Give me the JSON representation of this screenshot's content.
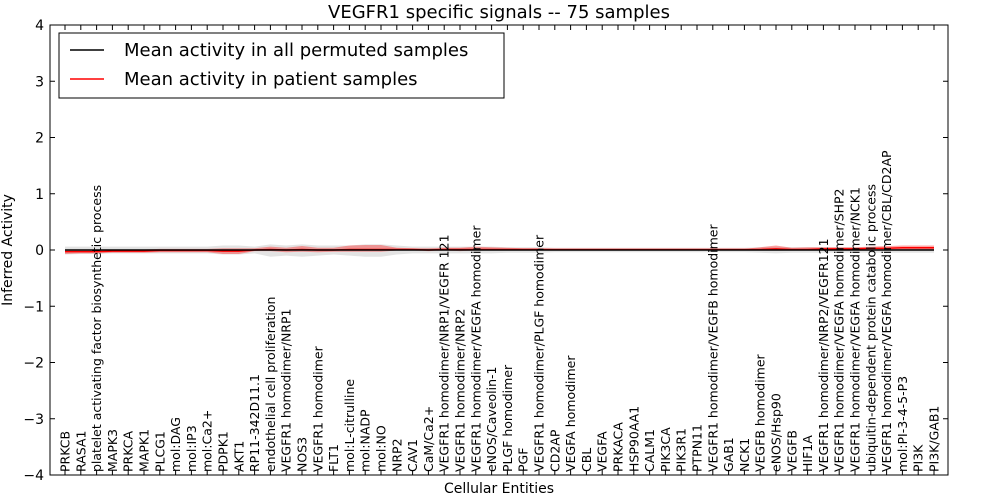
{
  "chart_data": {
    "type": "line",
    "title": "VEGFR1 specific signals -- 75 samples",
    "xlabel": "Cellular Entities",
    "ylabel": "Inferred Activity",
    "ylim": [
      -4,
      4
    ],
    "yticks": [
      "−4",
      "−3",
      "−2",
      "−1",
      "0",
      "1",
      "2",
      "3",
      "4"
    ],
    "grid": false,
    "legend_position": "top-left",
    "categories": [
      "PRKCB",
      "RASA1",
      "platelet activating factor biosynthetic process",
      "MAPK3",
      "PRKCA",
      "MAPK1",
      "PLCG1",
      "mol:DAG",
      "mol:IP3",
      "mol:Ca2+",
      "PDPK1",
      "AKT1",
      "RP11-342D11.1",
      "endothelial cell proliferation",
      "VEGFR1 homodimer/NRP1",
      "NOS3",
      "VEGFR1 homodimer",
      "FLT1",
      "mol:L-citrulline",
      "mol:NADP",
      "mol:NO",
      "NRP2",
      "CAV1",
      "CaM/Ca2+",
      "VEGFR1 homodimer/NRP1/VEGFR 121",
      "VEGFR1 homodimer/NRP2",
      "VEGFR1 homodimer/VEGFA homodimer",
      "eNOS/Caveolin-1",
      "PLGF homodimer",
      "PGF",
      "VEGFR1 homodimer/PLGF homodimer",
      "CD2AP",
      "VEGFA homodimer",
      "CBL",
      "VEGFA",
      "PRKACA",
      "HSP90AA1",
      "CALM1",
      "PIK3CA",
      "PIK3R1",
      "PTPN11",
      "VEGFR1 homodimer/VEGFB homodimer",
      "GAB1",
      "NCK1",
      "VEGFB homodimer",
      "eNOS/Hsp90",
      "VEGFB",
      "HIF1A",
      "VEGFR1 homodimer/NRP2/VEGFR121",
      "VEGFR1 homodimer/VEGFA homodimer/SHP2",
      "VEGFR1 homodimer/VEGFA homodimer/NCK1",
      "ubiquitin-dependent protein catabolic process",
      "VEGFR1 homodimer/VEGFA homodimer/CBL/CD2AP",
      "mol:PI-3-4-5-P3",
      "PI3K",
      "PI3K/GAB1"
    ],
    "series": [
      {
        "name": "Mean activity in all permuted samples",
        "color": "#000000",
        "values": [
          0.0,
          0.0,
          0.0,
          0.0,
          0.0,
          0.0,
          0.0,
          0.0,
          0.0,
          0.0,
          0.0,
          0.0,
          0.0,
          0.0,
          0.0,
          0.0,
          0.0,
          0.0,
          0.0,
          0.0,
          0.0,
          0.0,
          0.0,
          0.0,
          0.0,
          0.0,
          0.0,
          0.0,
          0.0,
          0.0,
          0.0,
          0.0,
          0.0,
          0.0,
          0.0,
          0.0,
          0.0,
          0.0,
          0.0,
          0.0,
          0.0,
          0.0,
          0.0,
          0.0,
          0.0,
          0.0,
          0.0,
          0.0,
          0.0,
          0.0,
          0.0,
          0.0,
          0.0,
          0.0,
          0.0,
          0.0
        ],
        "band_low": [
          -0.08,
          -0.07,
          -0.07,
          -0.06,
          -0.06,
          -0.06,
          -0.06,
          -0.06,
          -0.06,
          -0.06,
          -0.08,
          -0.08,
          -0.06,
          -0.12,
          -0.1,
          -0.12,
          -0.1,
          -0.08,
          -0.1,
          -0.12,
          -0.12,
          -0.08,
          -0.06,
          -0.06,
          -0.06,
          -0.06,
          -0.06,
          -0.06,
          -0.05,
          -0.05,
          -0.05,
          -0.04,
          -0.04,
          -0.04,
          -0.04,
          -0.04,
          -0.04,
          -0.04,
          -0.04,
          -0.04,
          -0.04,
          -0.04,
          -0.04,
          -0.04,
          -0.05,
          -0.06,
          -0.05,
          -0.05,
          -0.05,
          -0.05,
          -0.05,
          -0.05,
          -0.05,
          -0.05,
          -0.05,
          -0.05
        ],
        "band_high": [
          0.06,
          0.06,
          0.06,
          0.06,
          0.06,
          0.06,
          0.06,
          0.06,
          0.06,
          0.06,
          0.08,
          0.08,
          0.06,
          0.1,
          0.08,
          0.1,
          0.08,
          0.08,
          0.08,
          0.1,
          0.1,
          0.08,
          0.06,
          0.06,
          0.06,
          0.06,
          0.06,
          0.06,
          0.05,
          0.05,
          0.05,
          0.04,
          0.04,
          0.04,
          0.04,
          0.04,
          0.04,
          0.04,
          0.04,
          0.04,
          0.04,
          0.04,
          0.04,
          0.04,
          0.05,
          0.06,
          0.05,
          0.05,
          0.05,
          0.05,
          0.05,
          0.05,
          0.05,
          0.05,
          0.05,
          0.05
        ]
      },
      {
        "name": "Mean activity in patient samples",
        "color": "#ff0000",
        "values": [
          -0.03,
          -0.03,
          -0.03,
          -0.02,
          -0.02,
          -0.02,
          -0.01,
          -0.01,
          -0.01,
          -0.01,
          -0.02,
          -0.02,
          0.0,
          0.01,
          0.0,
          0.01,
          0.0,
          0.0,
          0.01,
          0.01,
          0.01,
          0.01,
          0.01,
          0.0,
          0.01,
          0.01,
          0.01,
          0.01,
          0.01,
          0.01,
          0.01,
          0.01,
          0.01,
          0.01,
          0.01,
          0.01,
          0.01,
          0.01,
          0.01,
          0.01,
          0.01,
          0.01,
          0.01,
          0.01,
          0.01,
          0.02,
          0.01,
          0.01,
          0.02,
          0.02,
          0.02,
          0.03,
          0.03,
          0.04,
          0.04,
          0.04
        ],
        "band_low": [
          -0.07,
          -0.06,
          -0.06,
          -0.05,
          -0.05,
          -0.05,
          -0.04,
          -0.04,
          -0.04,
          -0.04,
          -0.07,
          -0.07,
          -0.02,
          -0.02,
          -0.04,
          -0.03,
          -0.04,
          -0.03,
          -0.03,
          -0.03,
          -0.03,
          -0.01,
          -0.01,
          -0.02,
          -0.01,
          -0.02,
          -0.01,
          -0.01,
          -0.01,
          0.0,
          0.0,
          0.0,
          0.0,
          0.0,
          0.0,
          0.0,
          0.0,
          0.0,
          0.0,
          0.0,
          0.0,
          0.0,
          0.0,
          0.0,
          0.0,
          -0.01,
          0.0,
          0.0,
          0.0,
          0.0,
          0.0,
          0.0,
          0.01,
          0.01,
          0.01,
          0.01
        ],
        "band_high": [
          0.01,
          0.0,
          0.0,
          0.01,
          0.01,
          0.01,
          0.02,
          0.02,
          0.02,
          0.02,
          0.03,
          0.03,
          0.03,
          0.06,
          0.04,
          0.07,
          0.04,
          0.04,
          0.08,
          0.09,
          0.09,
          0.04,
          0.03,
          0.03,
          0.04,
          0.04,
          0.06,
          0.05,
          0.04,
          0.03,
          0.03,
          0.02,
          0.02,
          0.02,
          0.02,
          0.02,
          0.02,
          0.02,
          0.02,
          0.02,
          0.02,
          0.02,
          0.02,
          0.02,
          0.05,
          0.08,
          0.04,
          0.05,
          0.05,
          0.05,
          0.05,
          0.06,
          0.07,
          0.08,
          0.08,
          0.08
        ]
      }
    ]
  }
}
